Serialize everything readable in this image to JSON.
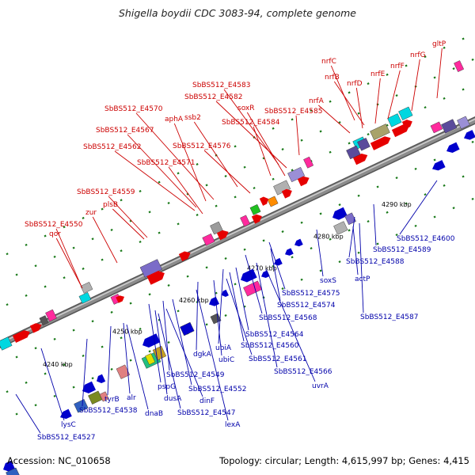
{
  "title": "Shigella boydii CDC 3083-94, complete genome",
  "accession": "Accession: NC_010658",
  "summary": "Topology: circular; Length: 4,615,997 bp; Genes: 4,415",
  "colors": {
    "upper_label": "#cc0000",
    "lower_label": "#0000aa",
    "backbone": "#8c8c8c",
    "tick": "#1a7a1a",
    "scale_text": "#000000"
  },
  "scale_ticks": [
    "4240 kbp",
    "4250 kbp",
    "4260 kbp",
    "4270 kbp",
    "4280 kbp",
    "4290 kbp"
  ],
  "upper_labels": [
    "gltP",
    "nrfG",
    "nrfF",
    "nrfC",
    "nrfE",
    "nrfB",
    "nrfD",
    "nrfA",
    "SbBS512_E4583",
    "SbBS512_E4582",
    "soxR",
    "SbBS512_E4584",
    "SbBS512_E4585",
    "SbBS512_E4570",
    "aphA",
    "ssb2",
    "SbBS512_E4567",
    "SbBS512_E4576",
    "SbBS512_E4562",
    "SbBS512_E4571",
    "SbBS512_E4559",
    "plsB",
    "zur",
    "SbBS512_E4550",
    "qor"
  ],
  "lower_labels": [
    "SbBS512_E4600",
    "SbBS512_E4589",
    "SbBS512_E4588",
    "soxS",
    "actP",
    "SbBS512_E4575",
    "SbBS512_E4574",
    "SbBS512_E4587",
    "SbBS512_E4568",
    "SbBS512_E4564",
    "ubiA",
    "SbBS512_E4560",
    "dgkA",
    "ubiC",
    "SbBS512_E4561",
    "SbBS512_E4566",
    "uvrA",
    "SbBS512_E4549",
    "pspG",
    "SbBS512_E4552",
    "dusA",
    "dinF",
    "SbBS512_E4547",
    "lexA",
    "tyrB",
    "alr",
    "dnaB",
    "SbBS512_E4538",
    "lysC",
    "SbBS512_E4527"
  ]
}
